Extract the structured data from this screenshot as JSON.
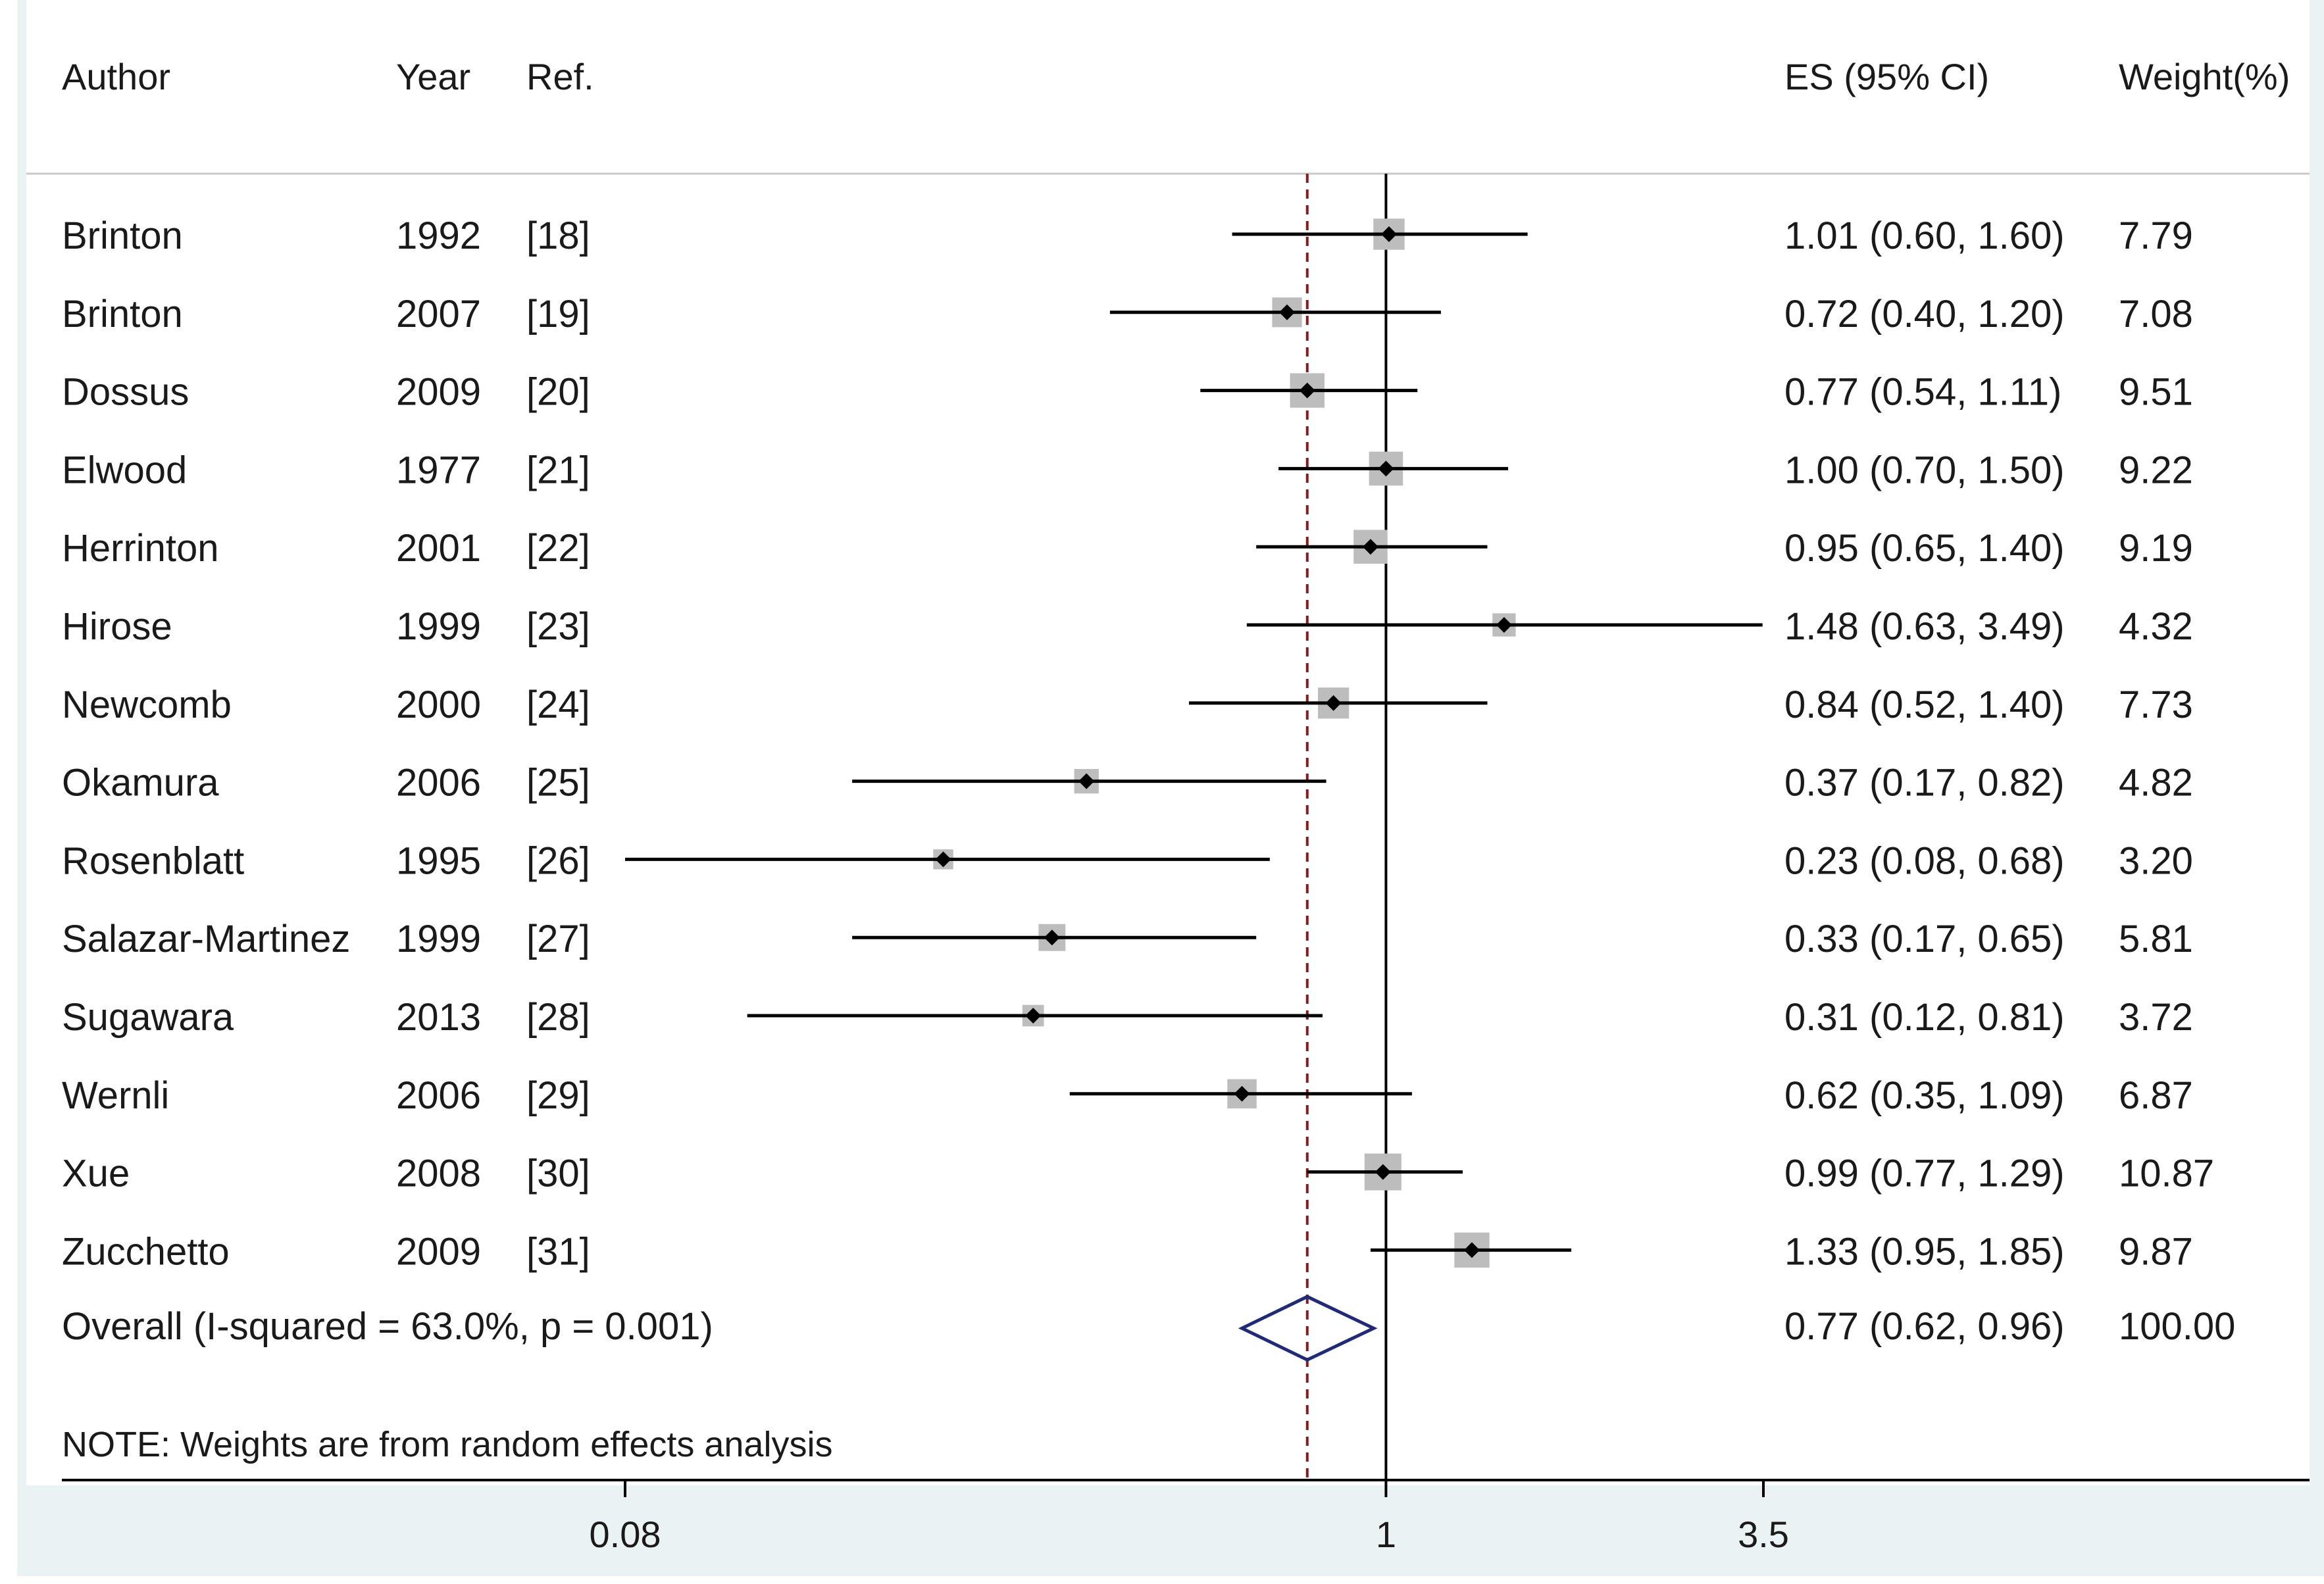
{
  "headers": {
    "author": "Author",
    "year": "Year",
    "ref": "Ref.",
    "es": "ES (95% CI)",
    "weight": "Weight(%)"
  },
  "overall_label": "Overall  (I-squared = 63.0%, p = 0.001)",
  "note": "NOTE: Weights are from random effects analysis",
  "colors": {
    "ci_line": "#000000",
    "point": "#000000",
    "weight_box": "#bdbdbd",
    "pooled_diamond": "#1f2a7a",
    "pooled_line": "#8b1a1a",
    "panel_bg": "#eaf2f3"
  },
  "chart_data": {
    "type": "forest",
    "x_scale": "log",
    "xlim": [
      0.08,
      3.5
    ],
    "x_ticks": [
      {
        "value": 0.08,
        "label": "0.08"
      },
      {
        "value": 1,
        "label": "1"
      },
      {
        "value": 3.5,
        "label": "3.5"
      }
    ],
    "null_line": 1,
    "pooled_line_style": "dashed",
    "studies": [
      {
        "author": "Brinton",
        "year": "1992",
        "ref": "[18]",
        "es": 1.01,
        "lo": 0.6,
        "hi": 1.6,
        "es_text": "1.01 (0.60, 1.60)",
        "weight": 7.79,
        "weight_text": "7.79"
      },
      {
        "author": "Brinton",
        "year": "2007",
        "ref": "[19]",
        "es": 0.72,
        "lo": 0.4,
        "hi": 1.2,
        "es_text": "0.72 (0.40, 1.20)",
        "weight": 7.08,
        "weight_text": "7.08"
      },
      {
        "author": "Dossus",
        "year": "2009",
        "ref": "[20]",
        "es": 0.77,
        "lo": 0.54,
        "hi": 1.11,
        "es_text": "0.77 (0.54, 1.11)",
        "weight": 9.51,
        "weight_text": "9.51"
      },
      {
        "author": "Elwood",
        "year": "1977",
        "ref": "[21]",
        "es": 1.0,
        "lo": 0.7,
        "hi": 1.5,
        "es_text": "1.00 (0.70, 1.50)",
        "weight": 9.22,
        "weight_text": "9.22"
      },
      {
        "author": "Herrinton",
        "year": "2001",
        "ref": "[22]",
        "es": 0.95,
        "lo": 0.65,
        "hi": 1.4,
        "es_text": "0.95 (0.65, 1.40)",
        "weight": 9.19,
        "weight_text": "9.19"
      },
      {
        "author": "Hirose",
        "year": "1999",
        "ref": "[23]",
        "es": 1.48,
        "lo": 0.63,
        "hi": 3.49,
        "es_text": "1.48 (0.63, 3.49)",
        "weight": 4.32,
        "weight_text": "4.32"
      },
      {
        "author": "Newcomb",
        "year": "2000",
        "ref": "[24]",
        "es": 0.84,
        "lo": 0.52,
        "hi": 1.4,
        "es_text": "0.84 (0.52, 1.40)",
        "weight": 7.73,
        "weight_text": "7.73"
      },
      {
        "author": "Okamura",
        "year": "2006",
        "ref": "[25]",
        "es": 0.37,
        "lo": 0.17,
        "hi": 0.82,
        "es_text": "0.37 (0.17, 0.82)",
        "weight": 4.82,
        "weight_text": "4.82"
      },
      {
        "author": "Rosenblatt",
        "year": "1995",
        "ref": "[26]",
        "es": 0.23,
        "lo": 0.08,
        "hi": 0.68,
        "es_text": "0.23 (0.08, 0.68)",
        "weight": 3.2,
        "weight_text": "3.20"
      },
      {
        "author": "Salazar-Martinez",
        "year": "1999",
        "ref": "[27]",
        "es": 0.33,
        "lo": 0.17,
        "hi": 0.65,
        "es_text": "0.33 (0.17, 0.65)",
        "weight": 5.81,
        "weight_text": "5.81"
      },
      {
        "author": "Sugawara",
        "year": "2013",
        "ref": "[28]",
        "es": 0.31,
        "lo": 0.12,
        "hi": 0.81,
        "es_text": "0.31 (0.12, 0.81)",
        "weight": 3.72,
        "weight_text": "3.72"
      },
      {
        "author": "Wernli",
        "year": "2006",
        "ref": "[29]",
        "es": 0.62,
        "lo": 0.35,
        "hi": 1.09,
        "es_text": "0.62 (0.35, 1.09)",
        "weight": 6.87,
        "weight_text": "6.87"
      },
      {
        "author": "Xue",
        "year": "2008",
        "ref": "[30]",
        "es": 0.99,
        "lo": 0.77,
        "hi": 1.29,
        "es_text": "0.99 (0.77, 1.29)",
        "weight": 10.87,
        "weight_text": "10.87"
      },
      {
        "author": "Zucchetto",
        "year": "2009",
        "ref": "[31]",
        "es": 1.33,
        "lo": 0.95,
        "hi": 1.85,
        "es_text": "1.33 (0.95, 1.85)",
        "weight": 9.87,
        "weight_text": "9.87"
      }
    ],
    "overall": {
      "es": 0.77,
      "lo": 0.62,
      "hi": 0.96,
      "es_text": "0.77 (0.62, 0.96)",
      "weight": 100.0,
      "weight_text": "100.00"
    }
  }
}
